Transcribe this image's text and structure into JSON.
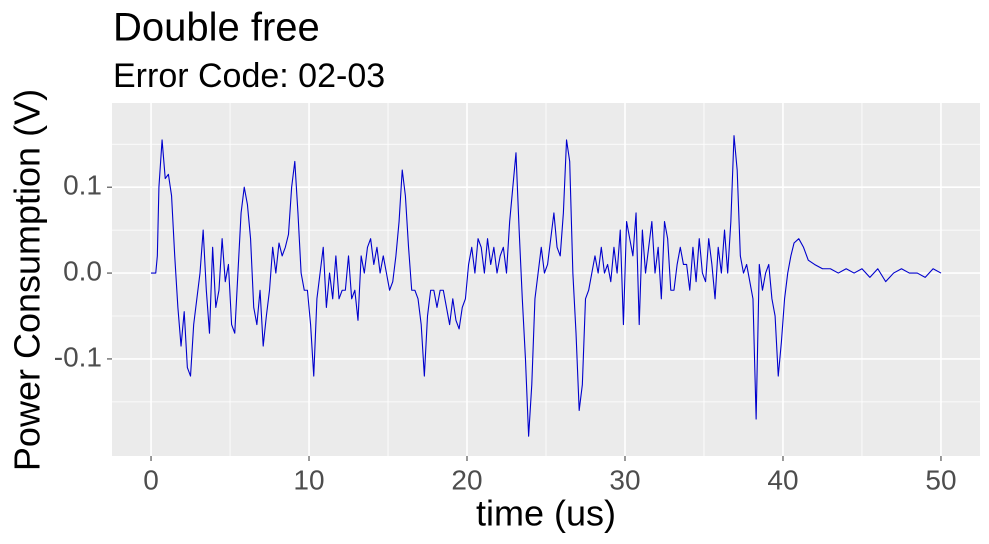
{
  "chart_data": {
    "type": "line",
    "title": "Double free",
    "subtitle": "Error Code: 02-03",
    "x_label": "time (us)",
    "y_label": "Power Consumption (V)",
    "xlim": [
      -2.47,
      52.47
    ],
    "ylim": [
      -0.213,
      0.198
    ],
    "xticks": [
      0,
      10,
      20,
      30,
      40,
      50
    ],
    "yticks": [
      -0.1,
      {
        "value": 0,
        "label": "0.0"
      },
      0.1
    ],
    "grid": true,
    "series": [
      {
        "name": "Power Consumption",
        "color": "#0000cd",
        "x": [
          0,
          0.3,
          0.4,
          0.5,
          0.7,
          0.9,
          1.1,
          1.3,
          1.5,
          1.7,
          1.9,
          2.1,
          2.3,
          2.5,
          2.7,
          2.9,
          3.1,
          3.3,
          3.5,
          3.7,
          3.9,
          4.1,
          4.3,
          4.5,
          4.7,
          4.9,
          5.1,
          5.3,
          5.5,
          5.7,
          5.9,
          6.1,
          6.3,
          6.5,
          6.7,
          6.9,
          7.1,
          7.3,
          7.5,
          7.7,
          7.9,
          8.1,
          8.3,
          8.5,
          8.7,
          8.9,
          9.1,
          9.3,
          9.5,
          9.7,
          9.9,
          10.1,
          10.3,
          10.5,
          10.7,
          10.9,
          11.1,
          11.3,
          11.5,
          11.7,
          11.9,
          12.1,
          12.3,
          12.5,
          12.7,
          12.9,
          13.1,
          13.3,
          13.5,
          13.7,
          13.9,
          14.1,
          14.3,
          14.5,
          14.7,
          14.9,
          15.1,
          15.3,
          15.5,
          15.7,
          15.9,
          16.1,
          16.3,
          16.5,
          16.7,
          16.9,
          17.1,
          17.3,
          17.5,
          17.7,
          17.9,
          18.1,
          18.3,
          18.5,
          18.7,
          18.9,
          19.1,
          19.3,
          19.5,
          19.7,
          19.9,
          20.1,
          20.3,
          20.5,
          20.7,
          20.9,
          21.1,
          21.3,
          21.5,
          21.7,
          21.9,
          22.1,
          22.3,
          22.5,
          22.7,
          22.9,
          23.1,
          23.3,
          23.5,
          23.7,
          23.9,
          24.1,
          24.3,
          24.5,
          24.7,
          24.9,
          25.1,
          25.3,
          25.5,
          25.7,
          25.9,
          26.1,
          26.3,
          26.5,
          26.7,
          26.9,
          27.1,
          27.3,
          27.5,
          27.7,
          27.9,
          28.1,
          28.3,
          28.5,
          28.7,
          28.9,
          29.1,
          29.3,
          29.5,
          29.7,
          29.9,
          30.1,
          30.3,
          30.5,
          30.7,
          30.9,
          31.1,
          31.3,
          31.5,
          31.7,
          31.9,
          32.1,
          32.3,
          32.5,
          32.7,
          32.9,
          33.1,
          33.3,
          33.5,
          33.7,
          33.9,
          34.1,
          34.3,
          34.5,
          34.7,
          34.9,
          35.1,
          35.3,
          35.5,
          35.7,
          35.9,
          36.1,
          36.3,
          36.5,
          36.7,
          36.9,
          37.1,
          37.3,
          37.5,
          37.7,
          37.9,
          38.1,
          38.3,
          38.5,
          38.7,
          38.9,
          39.1,
          39.3,
          39.5,
          39.7,
          39.9,
          40.1,
          40.3,
          40.5,
          40.7,
          41.0,
          41.3,
          41.6,
          42.0,
          42.5,
          43.0,
          43.5,
          44.0,
          44.5,
          45.0,
          45.5,
          46.0,
          46.5,
          47.0,
          47.5,
          48.0,
          48.5,
          49.0,
          49.5,
          50.0
        ],
        "values": [
          0,
          0,
          0.02,
          0.1,
          0.155,
          0.11,
          0.115,
          0.09,
          0.02,
          -0.04,
          -0.085,
          -0.045,
          -0.11,
          -0.12,
          -0.06,
          -0.03,
          0,
          0.05,
          -0.02,
          -0.07,
          0.03,
          -0.04,
          -0.02,
          0.04,
          -0.01,
          0.01,
          -0.06,
          -0.07,
          0,
          0.07,
          0.1,
          0.08,
          0.04,
          -0.04,
          -0.06,
          -0.02,
          -0.085,
          -0.05,
          -0.02,
          0.03,
          0,
          0.035,
          0.02,
          0.03,
          0.045,
          0.1,
          0.13,
          0.07,
          0,
          -0.02,
          -0.02,
          -0.06,
          -0.12,
          -0.03,
          0,
          0.03,
          -0.04,
          0,
          -0.03,
          0.02,
          -0.03,
          -0.02,
          -0.02,
          0.02,
          -0.03,
          -0.02,
          -0.055,
          0.02,
          0,
          0.03,
          0.04,
          0.01,
          0.03,
          0,
          0.02,
          0,
          -0.02,
          -0.01,
          0.02,
          0.06,
          0.12,
          0.09,
          0.03,
          -0.02,
          -0.02,
          -0.03,
          -0.06,
          -0.12,
          -0.05,
          -0.02,
          -0.02,
          -0.04,
          -0.02,
          -0.02,
          -0.04,
          -0.06,
          -0.03,
          -0.055,
          -0.065,
          -0.04,
          -0.03,
          0.01,
          0.03,
          0,
          0.04,
          0.03,
          0,
          0.04,
          0.01,
          0.03,
          0,
          0.02,
          0.03,
          0,
          0.06,
          0.1,
          0.14,
          0.05,
          -0.03,
          -0.1,
          -0.19,
          -0.13,
          -0.03,
          0,
          0.03,
          0,
          0.01,
          0.04,
          0.07,
          0.03,
          0.02,
          0.07,
          0.155,
          0.13,
          0,
          -0.07,
          -0.16,
          -0.13,
          -0.03,
          -0.02,
          0,
          0.02,
          0,
          0.03,
          0,
          0.01,
          -0.01,
          0.03,
          0,
          0.05,
          -0.06,
          0.06,
          0.04,
          0.02,
          0.07,
          -0.06,
          0.05,
          0,
          0.03,
          0.06,
          0,
          0.03,
          -0.03,
          0.06,
          0.04,
          -0.02,
          -0.02,
          0.01,
          0.03,
          0.01,
          0.01,
          -0.02,
          0.03,
          -0.01,
          0.04,
          0,
          -0.01,
          0.04,
          0.01,
          -0.03,
          0.03,
          0,
          0.05,
          0,
          0.06,
          0.16,
          0.12,
          0.02,
          0,
          0.01,
          -0.01,
          -0.03,
          -0.17,
          0.01,
          -0.02,
          0,
          0.01,
          -0.03,
          -0.05,
          -0.12,
          -0.08,
          -0.03,
          0,
          0.02,
          0.035,
          0.04,
          0.03,
          0.015,
          0.01,
          0.005,
          0.005,
          0,
          0.005,
          0,
          0.005,
          -0.005,
          0.005,
          -0.01,
          0,
          0.005,
          0,
          0,
          -0.005,
          0.005,
          0
        ]
      }
    ]
  }
}
